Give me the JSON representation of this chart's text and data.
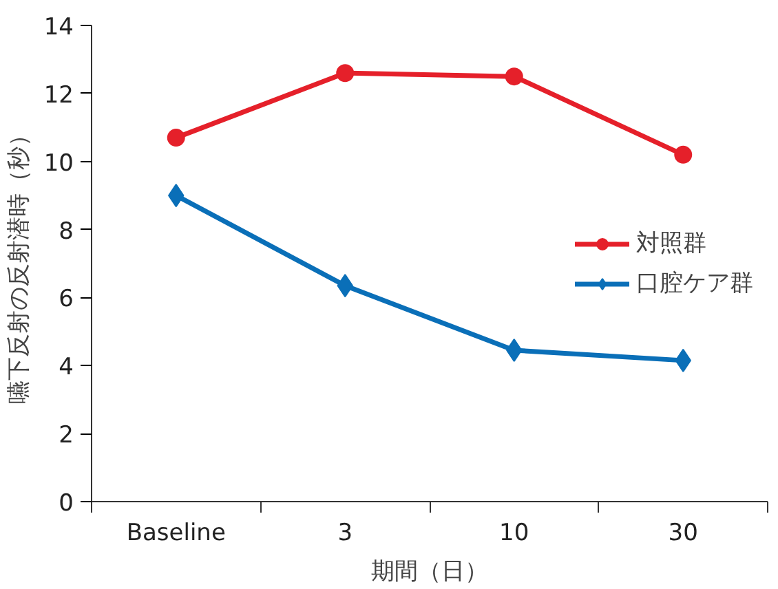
{
  "chart_data": {
    "type": "line",
    "xlabel": "期間（日）",
    "ylabel": "嚥下反射の反射潜時（秒）",
    "categories": [
      "Baseline",
      "3",
      "10",
      "30"
    ],
    "series": [
      {
        "name": "対照群",
        "color": "#e5202a",
        "marker": "circle",
        "values": [
          10.7,
          12.6,
          12.5,
          10.2
        ]
      },
      {
        "name": "口腔ケア群",
        "color": "#0a6fb8",
        "marker": "diamond",
        "values": [
          9.0,
          6.35,
          4.45,
          4.15
        ]
      }
    ],
    "ylim": [
      0,
      14
    ],
    "yticks": [
      0,
      2,
      4,
      6,
      8,
      10,
      12,
      14
    ],
    "grid": false,
    "legend": "right"
  }
}
